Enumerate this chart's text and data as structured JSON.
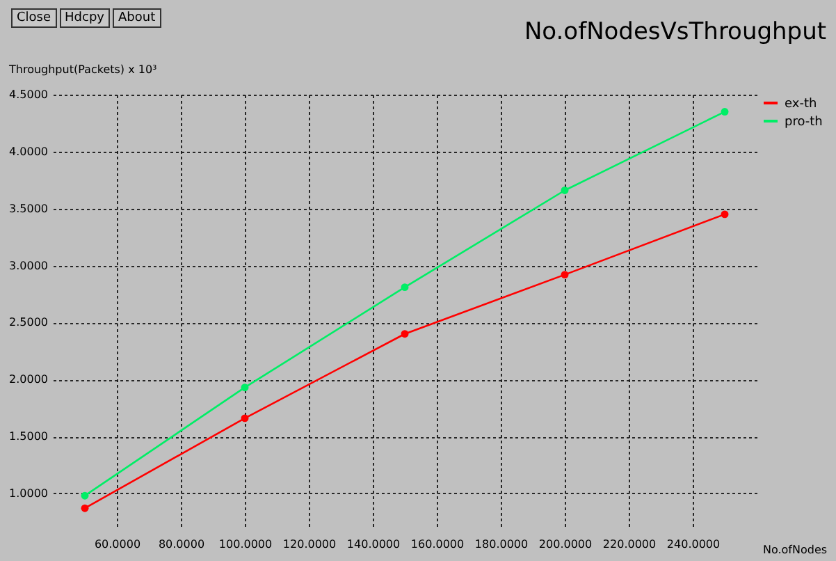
{
  "chart_data": {
    "type": "line",
    "title": "No.ofNodesVsThroughput",
    "xlabel": "No.ofNodes",
    "ylabel": "Throughput(Packets) x 10³",
    "annotations": [
      "Close",
      "Hdcpy",
      "About"
    ],
    "x": [
      50,
      100,
      150,
      200,
      250
    ],
    "series": [
      {
        "name": "ex-th",
        "color": "#ff0000",
        "values": [
          0.87,
          1.66,
          2.4,
          2.92,
          3.45
        ]
      },
      {
        "name": "pro-th",
        "color": "#00ee66",
        "values": [
          0.98,
          1.93,
          2.81,
          3.66,
          4.35
        ]
      }
    ],
    "xlim": [
      40,
      260
    ],
    "ylim": [
      0.7,
      4.5
    ],
    "xticks": [
      {
        "value": 60,
        "label": "60.0000"
      },
      {
        "value": 80,
        "label": "80.0000"
      },
      {
        "value": 100,
        "label": "100.0000"
      },
      {
        "value": 120,
        "label": "120.0000"
      },
      {
        "value": 140,
        "label": "140.0000"
      },
      {
        "value": 160,
        "label": "160.0000"
      },
      {
        "value": 180,
        "label": "180.0000"
      },
      {
        "value": 200,
        "label": "200.0000"
      },
      {
        "value": 220,
        "label": "220.0000"
      },
      {
        "value": 240,
        "label": "240.0000"
      }
    ],
    "yticks": [
      {
        "value": 1,
        "label": "1.0000"
      },
      {
        "value": 1.5,
        "label": "1.5000"
      },
      {
        "value": 2,
        "label": "2.0000"
      },
      {
        "value": 2.5,
        "label": "2.5000"
      },
      {
        "value": 3,
        "label": "3.0000"
      },
      {
        "value": 3.5,
        "label": "3.5000"
      },
      {
        "value": 4,
        "label": "4.0000"
      },
      {
        "value": 4.5,
        "label": "4.5000"
      }
    ],
    "grid": true,
    "legend": "top right",
    "marker": "circle",
    "line_style": "solid"
  }
}
